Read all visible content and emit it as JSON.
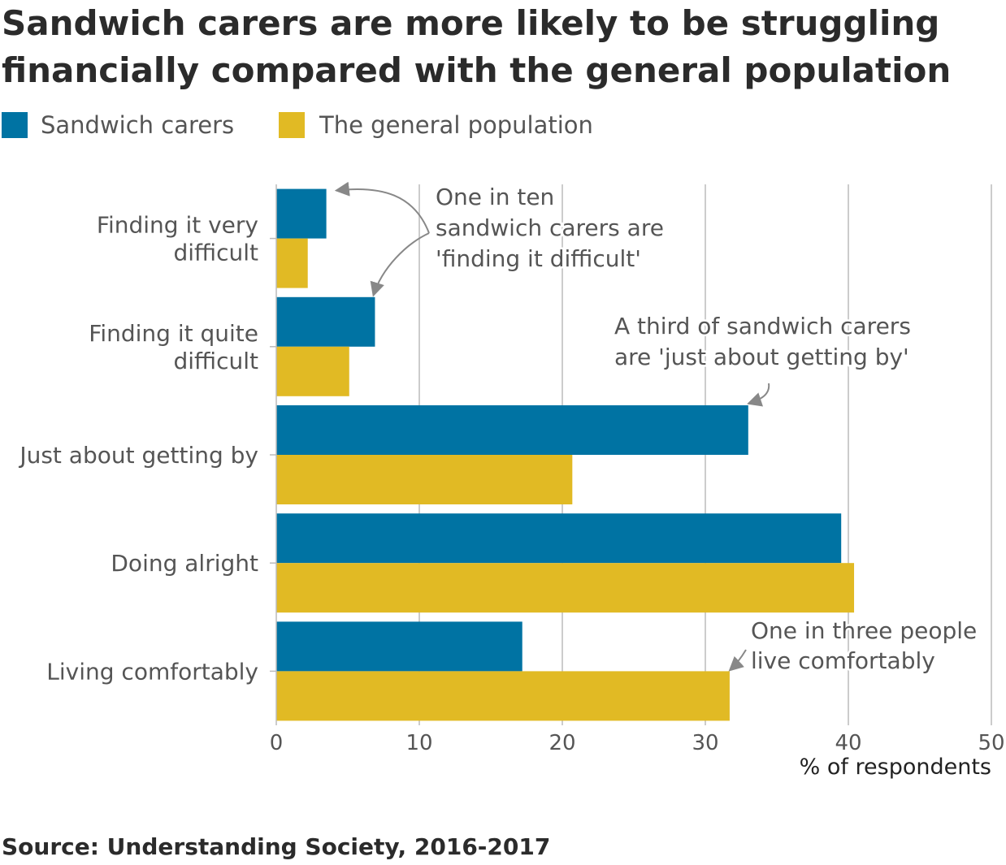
{
  "title": "Sandwich carers are more likely to be struggling financially compared with the general population",
  "source": "Source: Understanding Society, 2016-2017",
  "colors": {
    "sandwich": "#0073a3",
    "general": "#e1ba24",
    "grid": "#cccccc",
    "text": "#555555"
  },
  "chart_data": {
    "type": "bar",
    "orientation": "horizontal",
    "categories": [
      "Finding it very difficult",
      "Finding it quite difficult",
      "Just about getting by",
      "Doing alright",
      "Living comfortably"
    ],
    "category_lines": [
      [
        "Finding it very",
        "difficult"
      ],
      [
        "Finding it quite",
        "difficult"
      ],
      [
        "Just about getting by"
      ],
      [
        "Doing alright"
      ],
      [
        "Living comfortably"
      ]
    ],
    "series": [
      {
        "name": "Sandwich carers",
        "values": [
          3.5,
          6.9,
          33.0,
          39.5,
          17.2
        ]
      },
      {
        "name": "The general population",
        "values": [
          2.2,
          5.1,
          20.7,
          40.4,
          31.7
        ]
      }
    ],
    "xlabel": "% of respondents",
    "xlim": [
      0,
      50
    ],
    "xticks": [
      0,
      10,
      20,
      30,
      40,
      50
    ],
    "grid": true,
    "legend": "top-left",
    "annotations": [
      {
        "lines": [
          "One in ten",
          "sandwich carers are",
          "'finding it difficult'"
        ],
        "targets": [
          {
            "category": 0,
            "series": 0
          },
          {
            "category": 1,
            "series": 0
          }
        ]
      },
      {
        "lines": [
          "A third of sandwich carers",
          "are 'just about getting by'"
        ],
        "targets": [
          {
            "category": 2,
            "series": 0
          }
        ]
      },
      {
        "lines": [
          "One in three people",
          "live comfortably"
        ],
        "targets": [
          {
            "category": 4,
            "series": 1
          }
        ]
      }
    ]
  }
}
